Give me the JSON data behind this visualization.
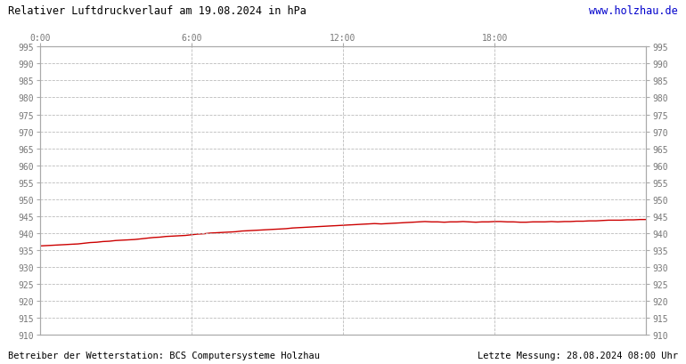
{
  "title": "Relativer Luftdruckverlauf am 19.08.2024 in hPa",
  "url": "www.holzhau.de",
  "footer_left": "Betreiber der Wetterstation: BCS Computersysteme Holzhau",
  "footer_right": "Letzte Messung: 28.08.2024 08:00 Uhr",
  "ylim": [
    910,
    995
  ],
  "ytick_step": 5,
  "xtick_labels": [
    "0:00",
    "6:00",
    "12:00",
    "18:00"
  ],
  "xtick_positions": [
    0,
    0.25,
    0.5,
    0.75
  ],
  "line_color": "#cc0000",
  "background_color": "#ffffff",
  "plot_bg_color": "#ffffff",
  "grid_color": "#bbbbbb",
  "url_color": "#0000cc",
  "pressure_x": [
    0.0,
    0.01,
    0.021,
    0.031,
    0.042,
    0.052,
    0.063,
    0.073,
    0.083,
    0.094,
    0.104,
    0.115,
    0.125,
    0.135,
    0.146,
    0.156,
    0.167,
    0.177,
    0.188,
    0.198,
    0.208,
    0.219,
    0.229,
    0.24,
    0.25,
    0.26,
    0.271,
    0.281,
    0.292,
    0.302,
    0.313,
    0.323,
    0.333,
    0.344,
    0.354,
    0.365,
    0.375,
    0.385,
    0.396,
    0.406,
    0.417,
    0.427,
    0.438,
    0.448,
    0.458,
    0.469,
    0.479,
    0.49,
    0.5,
    0.51,
    0.521,
    0.531,
    0.542,
    0.552,
    0.563,
    0.573,
    0.583,
    0.594,
    0.604,
    0.615,
    0.625,
    0.635,
    0.646,
    0.656,
    0.667,
    0.677,
    0.688,
    0.698,
    0.708,
    0.719,
    0.729,
    0.74,
    0.75,
    0.76,
    0.771,
    0.781,
    0.792,
    0.802,
    0.813,
    0.823,
    0.833,
    0.844,
    0.854,
    0.865,
    0.875,
    0.885,
    0.896,
    0.906,
    0.917,
    0.927,
    0.938,
    0.948,
    0.958,
    0.969,
    0.979,
    0.99,
    1.0
  ],
  "pressure_y": [
    936.2,
    936.3,
    936.4,
    936.5,
    936.6,
    936.7,
    936.8,
    937.0,
    937.2,
    937.3,
    937.5,
    937.6,
    937.8,
    937.9,
    938.0,
    938.1,
    938.3,
    938.5,
    938.7,
    938.8,
    939.0,
    939.1,
    939.2,
    939.3,
    939.5,
    939.7,
    939.8,
    940.0,
    940.1,
    940.2,
    940.3,
    940.4,
    940.6,
    940.7,
    940.8,
    940.9,
    941.0,
    941.1,
    941.2,
    941.3,
    941.5,
    941.6,
    941.7,
    941.8,
    941.9,
    942.0,
    942.1,
    942.2,
    942.3,
    942.4,
    942.5,
    942.6,
    942.7,
    942.8,
    942.7,
    942.8,
    942.9,
    943.0,
    943.1,
    943.2,
    943.3,
    943.4,
    943.3,
    943.3,
    943.2,
    943.3,
    943.3,
    943.4,
    943.3,
    943.2,
    943.3,
    943.3,
    943.4,
    943.4,
    943.3,
    943.3,
    943.2,
    943.2,
    943.3,
    943.3,
    943.3,
    943.4,
    943.3,
    943.4,
    943.4,
    943.5,
    943.5,
    943.6,
    943.6,
    943.7,
    943.8,
    943.8,
    943.8,
    943.9,
    943.9,
    944.0,
    944.0
  ]
}
